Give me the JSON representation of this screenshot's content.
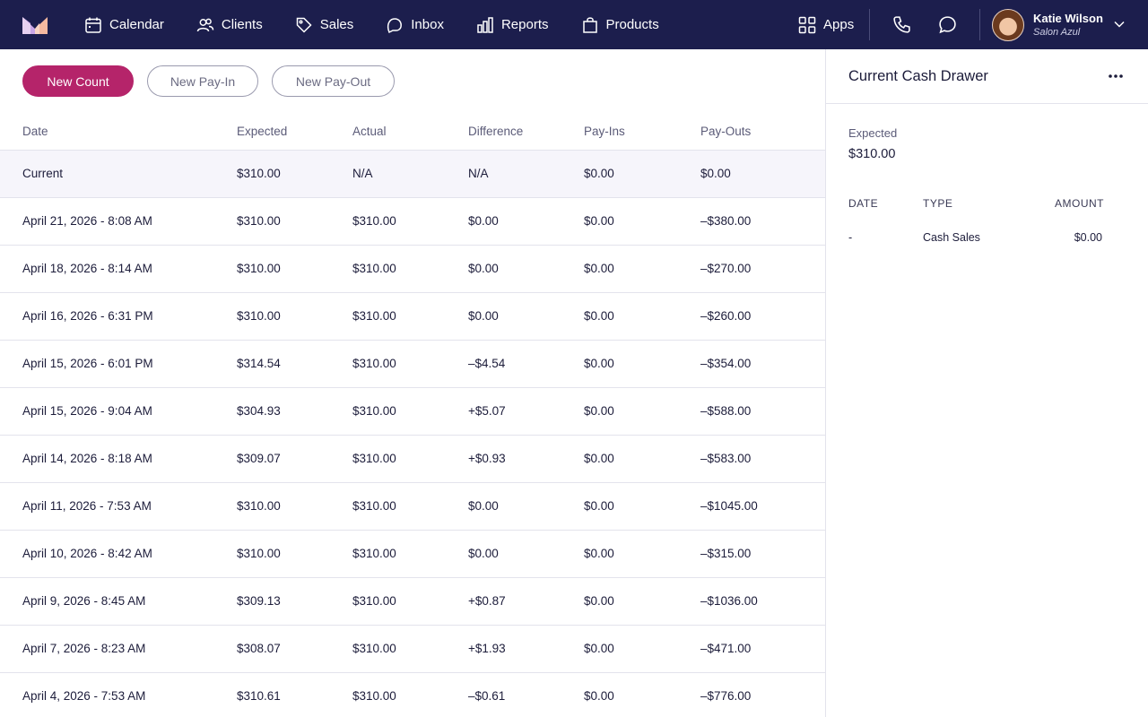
{
  "nav": {
    "items": [
      {
        "label": "Calendar"
      },
      {
        "label": "Clients"
      },
      {
        "label": "Sales"
      },
      {
        "label": "Inbox"
      },
      {
        "label": "Reports"
      },
      {
        "label": "Products"
      }
    ],
    "apps_label": "Apps",
    "user": {
      "name": "Katie Wilson",
      "location": "Salon Azul"
    }
  },
  "actions": {
    "new_count": "New Count",
    "new_pay_in": "New Pay-In",
    "new_pay_out": "New Pay-Out"
  },
  "table": {
    "headers": [
      "Date",
      "Expected",
      "Actual",
      "Difference",
      "Pay-Ins",
      "Pay-Outs"
    ],
    "rows": [
      [
        "Current",
        "$310.00",
        "N/A",
        "N/A",
        "$0.00",
        "$0.00"
      ],
      [
        "April 21, 2026 - 8:08 AM",
        "$310.00",
        "$310.00",
        "$0.00",
        "$0.00",
        "–$380.00"
      ],
      [
        "April 18, 2026 - 8:14 AM",
        "$310.00",
        "$310.00",
        "$0.00",
        "$0.00",
        "–$270.00"
      ],
      [
        "April 16, 2026 - 6:31 PM",
        "$310.00",
        "$310.00",
        "$0.00",
        "$0.00",
        "–$260.00"
      ],
      [
        "April 15, 2026 - 6:01 PM",
        "$314.54",
        "$310.00",
        "–$4.54",
        "$0.00",
        "–$354.00"
      ],
      [
        "April 15, 2026 - 9:04 AM",
        "$304.93",
        "$310.00",
        "+$5.07",
        "$0.00",
        "–$588.00"
      ],
      [
        "April 14, 2026 - 8:18 AM",
        "$309.07",
        "$310.00",
        "+$0.93",
        "$0.00",
        "–$583.00"
      ],
      [
        "April 11, 2026 - 7:53 AM",
        "$310.00",
        "$310.00",
        "$0.00",
        "$0.00",
        "–$1045.00"
      ],
      [
        "April 10, 2026 - 8:42 AM",
        "$310.00",
        "$310.00",
        "$0.00",
        "$0.00",
        "–$315.00"
      ],
      [
        "April 9, 2026 - 8:45 AM",
        "$309.13",
        "$310.00",
        "+$0.87",
        "$0.00",
        "–$1036.00"
      ],
      [
        "April 7, 2026 - 8:23 AM",
        "$308.07",
        "$310.00",
        "+$1.93",
        "$0.00",
        "–$471.00"
      ],
      [
        "April 4, 2026 - 7:53 AM",
        "$310.61",
        "$310.00",
        "–$0.61",
        "$0.00",
        "–$776.00"
      ]
    ]
  },
  "panel": {
    "title": "Current Cash Drawer",
    "expected_label": "Expected",
    "expected_value": "$310.00",
    "headers": {
      "date": "DATE",
      "type": "TYPE",
      "amount": "AMOUNT"
    },
    "rows": [
      {
        "date": "-",
        "type": "Cash Sales",
        "amount": "$0.00"
      }
    ]
  },
  "colors": {
    "nav_bg": "#1c1e4d",
    "primary": "#b5246a",
    "current_row_bg": "#f6f5fb"
  }
}
